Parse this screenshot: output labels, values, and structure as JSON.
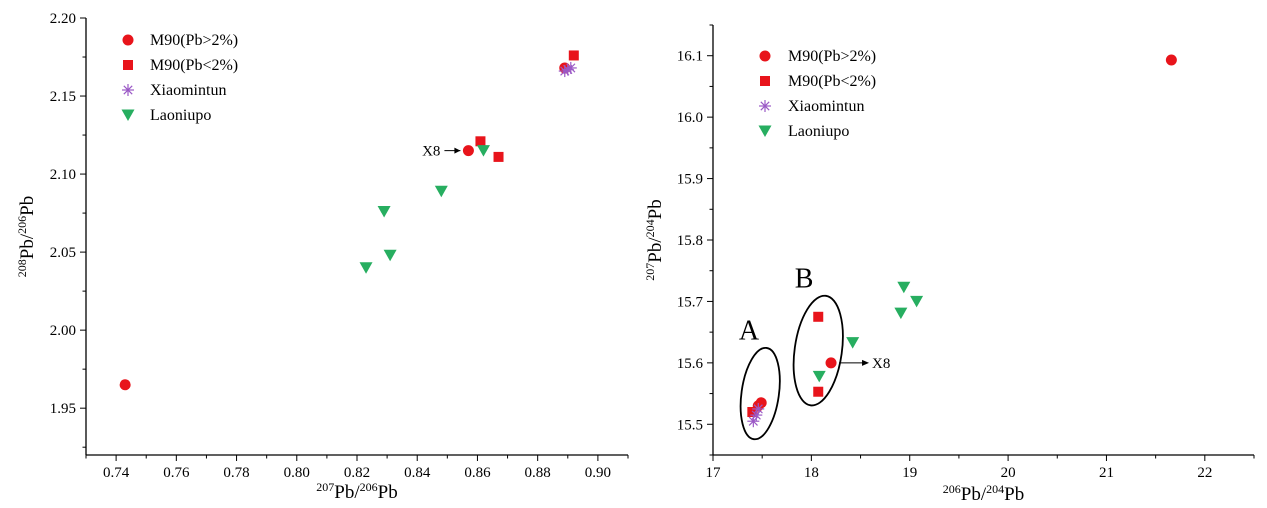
{
  "colors": {
    "m90": "#e8141b",
    "xiaomintun": "#9b59c6",
    "laoniupo": "#27ae60",
    "axis": "#000000"
  },
  "chart_data": [
    {
      "type": "scatter",
      "xlabel": {
        "base": "Pb/",
        "sup1": "207",
        "sup2": "206",
        "tail": "Pb"
      },
      "ylabel": {
        "base": "Pb/",
        "sup1": "208",
        "sup2": "206",
        "tail": "Pb"
      },
      "xlim": [
        0.73,
        0.91
      ],
      "ylim": [
        1.92,
        2.2
      ],
      "xticks": [
        0.74,
        0.76,
        0.78,
        0.8,
        0.82,
        0.84,
        0.86,
        0.88,
        0.9
      ],
      "xtick_labels": [
        "0.74",
        "0.76",
        "0.78",
        "0.80",
        "0.82",
        "0.84",
        "0.86",
        "0.88",
        "0.90"
      ],
      "yticks": [
        1.95,
        2.0,
        2.05,
        2.1,
        2.15,
        2.2
      ],
      "ytick_labels": [
        "1.95",
        "2.00",
        "2.05",
        "2.10",
        "2.15",
        "2.20"
      ],
      "legend_position": "top-left",
      "series": [
        {
          "name": "M90(Pb>2%)",
          "marker": "circle",
          "color": "#e8141b",
          "points": [
            [
              0.743,
              1.965
            ],
            [
              0.857,
              2.115
            ],
            [
              0.889,
              2.168
            ]
          ]
        },
        {
          "name": "M90(Pb<2%)",
          "marker": "square",
          "color": "#e8141b",
          "points": [
            [
              0.861,
              2.121
            ],
            [
              0.867,
              2.111
            ],
            [
              0.892,
              2.176
            ]
          ]
        },
        {
          "name": "Xiaomintun",
          "marker": "asterisk",
          "color": "#9b59c6",
          "points": [
            [
              0.889,
              2.166
            ],
            [
              0.89,
              2.167
            ],
            [
              0.891,
              2.168
            ]
          ]
        },
        {
          "name": "Laoniupo",
          "marker": "triangle-down",
          "color": "#27ae60",
          "points": [
            [
              0.823,
              2.04
            ],
            [
              0.829,
              2.076
            ],
            [
              0.831,
              2.048
            ],
            [
              0.848,
              2.089
            ],
            [
              0.862,
              2.115
            ]
          ]
        }
      ],
      "annotations": [
        {
          "text": "X8",
          "x": 0.857,
          "y": 2.115,
          "arrow": "left"
        }
      ]
    },
    {
      "type": "scatter",
      "xlabel": {
        "base": "Pb/",
        "sup1": "206",
        "sup2": "204",
        "tail": "Pb"
      },
      "ylabel": {
        "base": "Pb/",
        "sup1": "207",
        "sup2": "204",
        "tail": "Pb"
      },
      "xlim": [
        17.0,
        22.5
      ],
      "ylim": [
        15.45,
        16.15
      ],
      "xticks": [
        17,
        18,
        19,
        20,
        21,
        22
      ],
      "xtick_labels": [
        "17",
        "18",
        "19",
        "20",
        "21",
        "22"
      ],
      "yticks": [
        15.5,
        15.6,
        15.7,
        15.8,
        15.9,
        16.0,
        16.1
      ],
      "ytick_labels": [
        "15.5",
        "15.6",
        "15.7",
        "15.8",
        "15.9",
        "16.0",
        "16.1"
      ],
      "legend_position": "top-left",
      "series": [
        {
          "name": "M90(Pb>2%)",
          "marker": "circle",
          "color": "#e8141b",
          "points": [
            [
              17.46,
              15.53
            ],
            [
              17.49,
              15.535
            ],
            [
              18.2,
              15.6
            ],
            [
              21.66,
              16.093
            ]
          ]
        },
        {
          "name": "M90(Pb<2%)",
          "marker": "square",
          "color": "#e8141b",
          "points": [
            [
              17.4,
              15.52
            ],
            [
              18.07,
              15.675
            ],
            [
              18.07,
              15.553
            ]
          ]
        },
        {
          "name": "Xiaomintun",
          "marker": "asterisk",
          "color": "#9b59c6",
          "points": [
            [
              17.41,
              15.505
            ],
            [
              17.44,
              15.515
            ],
            [
              17.46,
              15.525
            ]
          ]
        },
        {
          "name": "Laoniupo",
          "marker": "triangle-down",
          "color": "#27ae60",
          "points": [
            [
              18.08,
              15.578
            ],
            [
              18.42,
              15.633
            ],
            [
              18.91,
              15.681
            ],
            [
              18.94,
              15.723
            ],
            [
              19.07,
              15.7
            ]
          ]
        }
      ],
      "annotations": [
        {
          "text": "X8",
          "x": 18.2,
          "y": 15.6,
          "arrow": "right"
        }
      ],
      "groups": [
        {
          "label": "A",
          "cx": 17.48,
          "cy": 15.55,
          "rx": 0.19,
          "ry": 0.075
        },
        {
          "label": "B",
          "cx": 18.07,
          "cy": 15.62,
          "rx": 0.24,
          "ry": 0.09
        }
      ]
    }
  ]
}
